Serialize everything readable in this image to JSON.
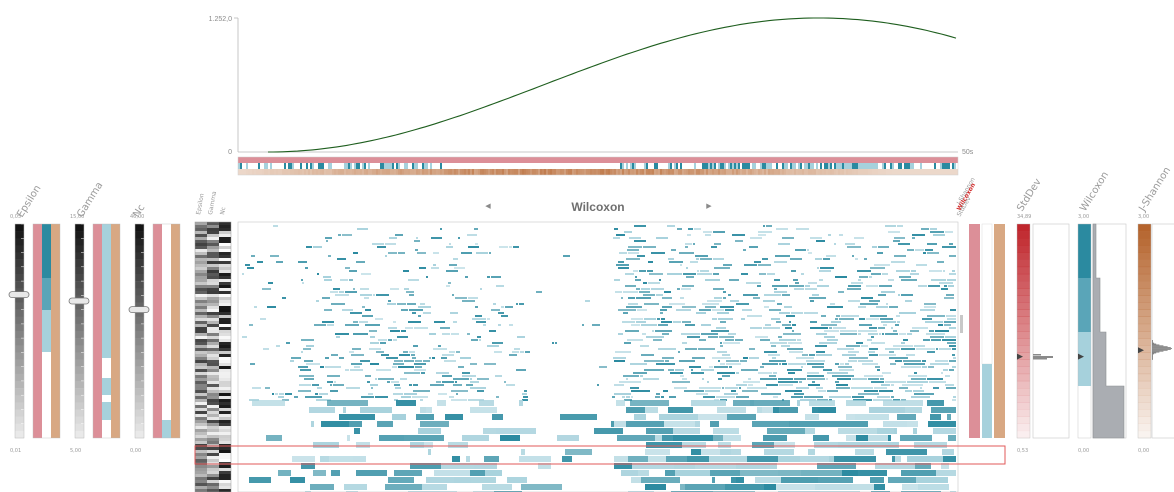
{
  "colors": {
    "teal": "#2b8aa0",
    "teal_light": "#a6d1dc",
    "pink": "#dc8f98",
    "tan": "#d8a883",
    "red": "#c0272d",
    "brown": "#b5642d",
    "curve": "#1e5e1e",
    "grey_bar": "#aaadb2"
  },
  "overview": {
    "y_max_label": "1.252,0",
    "y_min_label": "0",
    "x_end_label": "50s"
  },
  "heatmap": {
    "title": "Wilcoxon",
    "prev_arrow": "◀",
    "next_arrow": "▶"
  },
  "filters": {
    "epsilon": {
      "label": "Epsilon",
      "max": "0,05",
      "min": "0,01",
      "handle": 0.33
    },
    "gamma": {
      "label": "Gamma",
      "max": "15,00",
      "min": "5,00",
      "handle": 0.36
    },
    "nc": {
      "label": "Nc",
      "max": "46,00",
      "min": "0,00",
      "handle": 0.4
    }
  },
  "row_header_labels": [
    "Epsilon",
    "Gamma",
    "Nc"
  ],
  "column_header_labels": {
    "first": "J-Shannon",
    "second": "Wilcoxon",
    "third": "StdDev"
  },
  "distributions": {
    "stddev": {
      "label": "StdDev",
      "max": "34,89",
      "min": "0,53",
      "marker": 0.62
    },
    "wilcoxon": {
      "label": "Wilcoxon",
      "max": "3,00",
      "min": "0,00",
      "marker": 0.62
    },
    "jshannon": {
      "label": "J-Shannon",
      "max": "3,00",
      "min": "0,00",
      "marker": 0.59
    }
  }
}
